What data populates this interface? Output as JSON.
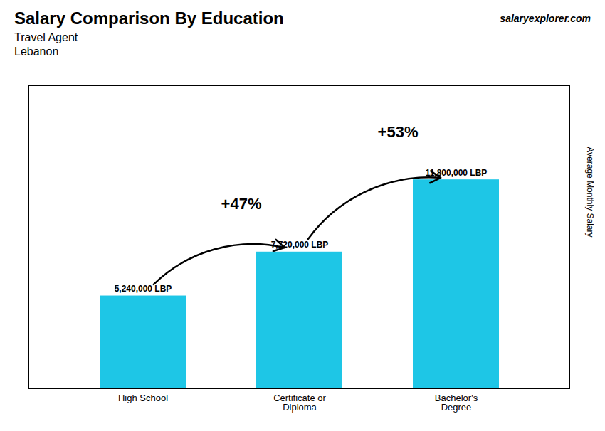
{
  "chart_data": {
    "type": "bar",
    "title": "Salary Comparison By Education",
    "subtitle": [
      "Travel Agent",
      "Lebanon"
    ],
    "watermark": "salaryexplorer.com",
    "categories": [
      "High School",
      "Certificate or\nDiploma",
      "Bachelor's\nDegree"
    ],
    "values": [
      5240000,
      7720000,
      11800000
    ],
    "value_labels": [
      "5,240,000 LBP",
      "7,720,000 LBP",
      "11,800,000 LBP"
    ],
    "data_labels": true,
    "color": "#1EC6E6",
    "y_label": "Average Monthly Salary",
    "ylim": [
      0,
      17110000
    ],
    "tick_labels": "x",
    "annotations": [
      {
        "from": "High School",
        "to": "Certificate or\nDiploma",
        "label": "+47%"
      },
      {
        "from": "Certificate or\nDiploma",
        "to": "Bachelor's\nDegree",
        "label": "+53%"
      }
    ]
  }
}
